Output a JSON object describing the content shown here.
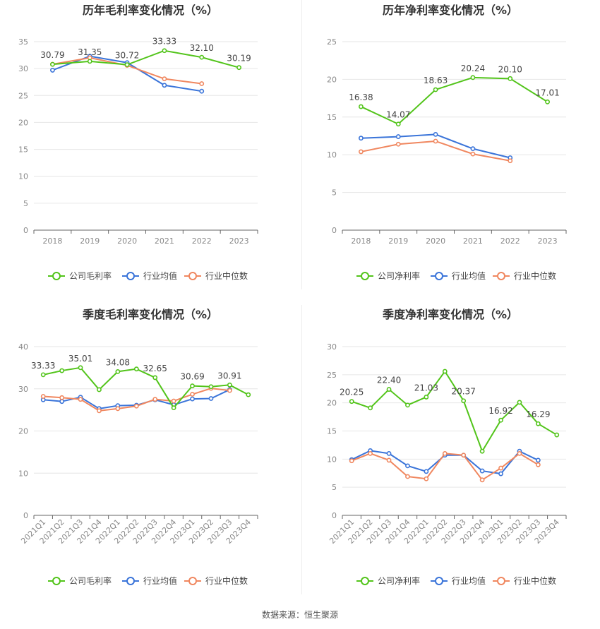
{
  "chart_data": [
    {
      "type": "line",
      "title": "历年毛利率变化情况（%）",
      "categories": [
        "2018",
        "2019",
        "2020",
        "2021",
        "2022",
        "2023"
      ],
      "ylim": [
        0,
        35
      ],
      "yticks": [
        0,
        5,
        10,
        15,
        20,
        25,
        30,
        35
      ],
      "grid": true,
      "legend_position": "bottom",
      "series": [
        {
          "name": "公司毛利率",
          "color": "#52c41a",
          "values": [
            30.79,
            31.35,
            30.72,
            33.33,
            32.1,
            30.19
          ],
          "labels": [
            "30.79",
            "31.35",
            "30.72",
            "33.33",
            "32.10",
            "30.19"
          ]
        },
        {
          "name": "行业均值",
          "color": "#3a74d9",
          "values": [
            29.7,
            32.3,
            31.1,
            26.9,
            25.8,
            null
          ]
        },
        {
          "name": "行业中位数",
          "color": "#f0875f",
          "values": [
            30.8,
            32.0,
            30.6,
            28.1,
            27.2,
            null
          ]
        }
      ]
    },
    {
      "type": "line",
      "title": "历年净利率变化情况（%）",
      "categories": [
        "2018",
        "2019",
        "2020",
        "2021",
        "2022",
        "2023"
      ],
      "ylim": [
        0,
        25
      ],
      "yticks": [
        0,
        5,
        10,
        15,
        20,
        25
      ],
      "grid": true,
      "legend_position": "bottom",
      "series": [
        {
          "name": "公司净利率",
          "color": "#52c41a",
          "values": [
            16.38,
            14.07,
            18.63,
            20.24,
            20.1,
            17.01
          ],
          "labels": [
            "16.38",
            "14.07",
            "18.63",
            "20.24",
            "20.10",
            "17.01"
          ]
        },
        {
          "name": "行业均值",
          "color": "#3a74d9",
          "values": [
            12.2,
            12.4,
            12.7,
            10.8,
            9.6,
            null
          ]
        },
        {
          "name": "行业中位数",
          "color": "#f0875f",
          "values": [
            10.4,
            11.4,
            11.8,
            10.1,
            9.2,
            null
          ]
        }
      ]
    },
    {
      "type": "line",
      "title": "季度毛利率变化情况（%）",
      "categories": [
        "2021Q1",
        "2021Q2",
        "2021Q3",
        "2021Q4",
        "2022Q1",
        "2022Q2",
        "2022Q3",
        "2022Q4",
        "2023Q1",
        "2023Q2",
        "2023Q3",
        "2023Q4"
      ],
      "ylim": [
        0,
        40
      ],
      "yticks": [
        0,
        10,
        20,
        30,
        40
      ],
      "grid": true,
      "legend_position": "bottom",
      "series": [
        {
          "name": "公司毛利率",
          "color": "#52c41a",
          "values": [
            33.33,
            34.3,
            35.01,
            29.8,
            34.08,
            34.7,
            32.65,
            25.5,
            30.69,
            30.5,
            30.91,
            28.6
          ],
          "labels": [
            "33.33",
            "",
            "35.01",
            "",
            "34.08",
            "",
            "32.65",
            "",
            "30.69",
            "",
            "30.91",
            ""
          ]
        },
        {
          "name": "行业均值",
          "color": "#3a74d9",
          "values": [
            27.4,
            27.0,
            28.0,
            25.3,
            26.0,
            26.1,
            27.4,
            26.2,
            27.6,
            27.7,
            29.8,
            null
          ]
        },
        {
          "name": "行业中位数",
          "color": "#f0875f",
          "values": [
            28.2,
            27.9,
            27.5,
            24.8,
            25.3,
            25.9,
            27.5,
            27.1,
            28.7,
            30.1,
            29.6,
            null
          ]
        }
      ]
    },
    {
      "type": "line",
      "title": "季度净利率变化情况（%）",
      "categories": [
        "2021Q1",
        "2021Q2",
        "2021Q3",
        "2021Q4",
        "2022Q1",
        "2022Q2",
        "2022Q3",
        "2022Q4",
        "2023Q1",
        "2023Q2",
        "2023Q3",
        "2023Q4"
      ],
      "ylim": [
        0,
        30
      ],
      "yticks": [
        0,
        5,
        10,
        15,
        20,
        25,
        30
      ],
      "grid": true,
      "legend_position": "bottom",
      "series": [
        {
          "name": "公司净利率",
          "color": "#52c41a",
          "values": [
            20.25,
            19.1,
            22.4,
            19.6,
            21.03,
            25.6,
            20.37,
            11.4,
            16.92,
            20.1,
            16.29,
            14.3
          ],
          "labels": [
            "20.25",
            "",
            "22.40",
            "",
            "21.03",
            "",
            "20.37",
            "",
            "16.92",
            "",
            "16.29",
            ""
          ]
        },
        {
          "name": "行业均值",
          "color": "#3a74d9",
          "values": [
            9.9,
            11.5,
            11.0,
            8.8,
            7.8,
            10.7,
            10.7,
            7.9,
            7.4,
            11.4,
            9.8,
            null
          ]
        },
        {
          "name": "行业中位数",
          "color": "#f0875f",
          "values": [
            9.7,
            11.0,
            9.8,
            6.9,
            6.5,
            11.0,
            10.7,
            6.3,
            8.4,
            11.0,
            9.0,
            null
          ]
        }
      ]
    }
  ],
  "source": "数据来源：恒生聚源"
}
